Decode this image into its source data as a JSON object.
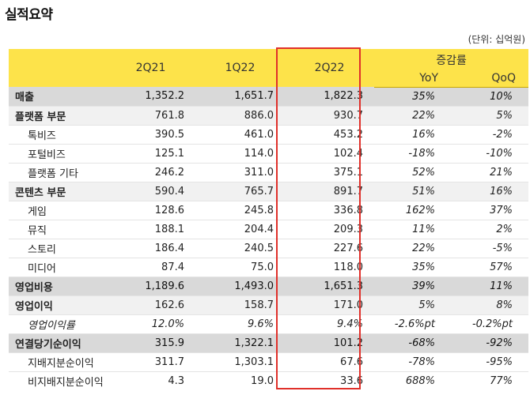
{
  "title": "실적요약",
  "unit_note": "(단위: 십억원)",
  "columns": {
    "periods": [
      "2Q21",
      "1Q22",
      "2Q22"
    ],
    "change_group": "증감률",
    "change_cols": [
      "YoY",
      "QoQ"
    ]
  },
  "rows": [
    {
      "label": "매출",
      "style": "major",
      "values": [
        "1,352.2",
        "1,651.7",
        "1,822.3"
      ],
      "yoy": "35%",
      "qoq": "10%"
    },
    {
      "label": "플랫폼 부문",
      "style": "mid",
      "values": [
        "761.8",
        "886.0",
        "930.7"
      ],
      "yoy": "22%",
      "qoq": "5%"
    },
    {
      "label": "톡비즈",
      "style": "sub",
      "values": [
        "390.5",
        "461.0",
        "453.2"
      ],
      "yoy": "16%",
      "qoq": "-2%"
    },
    {
      "label": "포털비즈",
      "style": "sub",
      "values": [
        "125.1",
        "114.0",
        "102.4"
      ],
      "yoy": "-18%",
      "qoq": "-10%"
    },
    {
      "label": "플랫폼 기타",
      "style": "sub",
      "values": [
        "246.2",
        "311.0",
        "375.1"
      ],
      "yoy": "52%",
      "qoq": "21%"
    },
    {
      "label": "콘텐츠 부문",
      "style": "mid",
      "values": [
        "590.4",
        "765.7",
        "891.7"
      ],
      "yoy": "51%",
      "qoq": "16%"
    },
    {
      "label": "게임",
      "style": "sub",
      "values": [
        "128.6",
        "245.8",
        "336.8"
      ],
      "yoy": "162%",
      "qoq": "37%"
    },
    {
      "label": "뮤직",
      "style": "sub",
      "values": [
        "188.1",
        "204.4",
        "209.3"
      ],
      "yoy": "11%",
      "qoq": "2%"
    },
    {
      "label": "스토리",
      "style": "sub",
      "values": [
        "186.4",
        "240.5",
        "227.6"
      ],
      "yoy": "22%",
      "qoq": "-5%"
    },
    {
      "label": "미디어",
      "style": "sub",
      "values": [
        "87.4",
        "75.0",
        "118.0"
      ],
      "yoy": "35%",
      "qoq": "57%"
    },
    {
      "label": "영업비용",
      "style": "major",
      "values": [
        "1,189.6",
        "1,493.0",
        "1,651.3"
      ],
      "yoy": "39%",
      "qoq": "11%"
    },
    {
      "label": "영업이익",
      "style": "mid",
      "values": [
        "162.6",
        "158.7",
        "171.0"
      ],
      "yoy": "5%",
      "qoq": "8%"
    },
    {
      "label": "영업이익률",
      "style": "ratio",
      "values": [
        "12.0%",
        "9.6%",
        "9.4%"
      ],
      "yoy": "-2.6%pt",
      "qoq": "-0.2%pt"
    },
    {
      "label": "연결당기순이익",
      "style": "major",
      "values": [
        "315.9",
        "1,322.1",
        "101.2"
      ],
      "yoy": "-68%",
      "qoq": "-92%"
    },
    {
      "label": "지배지분순이익",
      "style": "sub",
      "values": [
        "311.7",
        "1,303.1",
        "67.6"
      ],
      "yoy": "-78%",
      "qoq": "-95%"
    },
    {
      "label": "비지배지분순이익",
      "style": "sub",
      "values": [
        "4.3",
        "19.0",
        "33.6"
      ],
      "yoy": "688%",
      "qoq": "77%"
    }
  ],
  "highlight": {
    "column": "2Q22",
    "color": "#e0302a"
  },
  "colors": {
    "header_bg": "#fde34a",
    "major_row_bg": "#d9d9d9",
    "mid_row_bg": "#f1f1f1"
  }
}
